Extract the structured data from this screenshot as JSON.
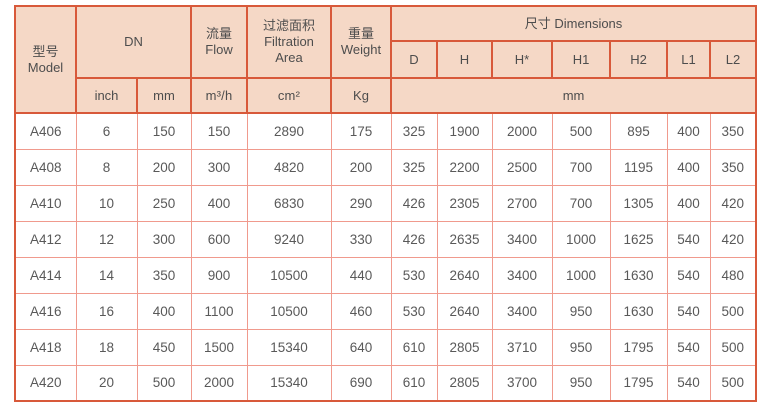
{
  "colors": {
    "header_bg": "#f5d8c6",
    "border_strong": "#d8593a",
    "border_light": "#f09a8d",
    "header_text": "#4d4d4d",
    "cell_text": "#595959"
  },
  "table": {
    "header": {
      "model_zh": "型号",
      "model_en": "Model",
      "dn": "DN",
      "flow_zh": "流量",
      "flow_en": "Flow",
      "filtration_zh": "过滤面积",
      "filtration_en1": "Filtration",
      "filtration_en2": "Area",
      "weight_zh": "重量",
      "weight_en": "Weight",
      "dimensions": "尺寸 Dimensions",
      "dim_cols": [
        "D",
        "H",
        "H*",
        "H1",
        "H2",
        "L1",
        "L2"
      ],
      "unit_inch": "inch",
      "unit_mm": "mm",
      "unit_flow": "m³/h",
      "unit_area": "cm²",
      "unit_weight": "Kg",
      "unit_dims": "mm"
    },
    "rows": [
      [
        "A406",
        "6",
        "150",
        "150",
        "2890",
        "175",
        "325",
        "1900",
        "2000",
        "500",
        "895",
        "400",
        "350"
      ],
      [
        "A408",
        "8",
        "200",
        "300",
        "4820",
        "200",
        "325",
        "2200",
        "2500",
        "700",
        "1195",
        "400",
        "350"
      ],
      [
        "A410",
        "10",
        "250",
        "400",
        "6830",
        "290",
        "426",
        "2305",
        "2700",
        "700",
        "1305",
        "400",
        "420"
      ],
      [
        "A412",
        "12",
        "300",
        "600",
        "9240",
        "330",
        "426",
        "2635",
        "3400",
        "1000",
        "1625",
        "540",
        "420"
      ],
      [
        "A414",
        "14",
        "350",
        "900",
        "10500",
        "440",
        "530",
        "2640",
        "3400",
        "1000",
        "1630",
        "540",
        "480"
      ],
      [
        "A416",
        "16",
        "400",
        "1100",
        "10500",
        "460",
        "530",
        "2640",
        "3400",
        "950",
        "1630",
        "540",
        "500"
      ],
      [
        "A418",
        "18",
        "450",
        "1500",
        "15340",
        "640",
        "610",
        "2805",
        "3710",
        "950",
        "1795",
        "540",
        "500"
      ],
      [
        "A420",
        "20",
        "500",
        "2000",
        "15340",
        "690",
        "610",
        "2805",
        "3700",
        "950",
        "1795",
        "540",
        "500"
      ]
    ]
  }
}
